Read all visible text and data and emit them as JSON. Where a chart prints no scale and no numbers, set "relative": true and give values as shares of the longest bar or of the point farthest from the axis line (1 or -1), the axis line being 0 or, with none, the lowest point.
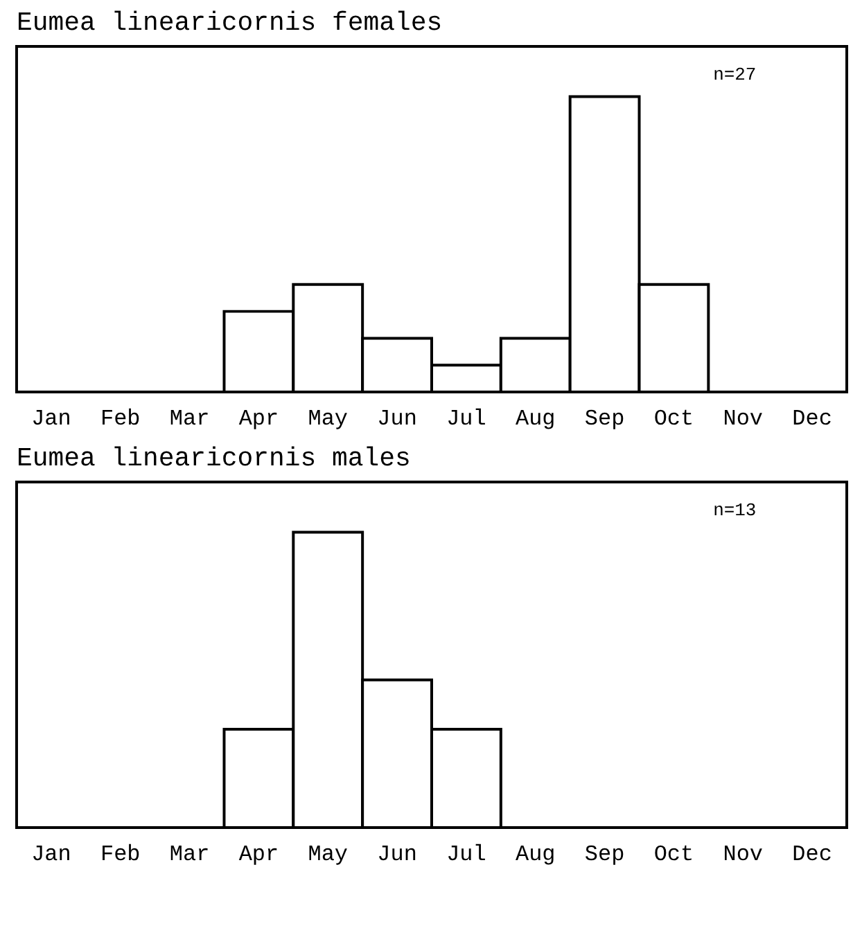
{
  "chart_data": [
    {
      "type": "bar",
      "title": "Eumea linearicornis females",
      "relative": true,
      "categories": [
        "Jan",
        "Feb",
        "Mar",
        "Apr",
        "May",
        "Jun",
        "Jul",
        "Aug",
        "Sep",
        "Oct",
        "Nov",
        "Dec"
      ],
      "values": [
        0,
        0,
        0,
        0.273,
        0.364,
        0.182,
        0.091,
        0.182,
        1,
        0.364,
        0,
        0
      ],
      "color": "#ffffff",
      "annotations": [
        "n=27"
      ]
    },
    {
      "type": "bar",
      "title": "Eumea linearicornis males",
      "relative": true,
      "categories": [
        "Jan",
        "Feb",
        "Mar",
        "Apr",
        "May",
        "Jun",
        "Jul",
        "Aug",
        "Sep",
        "Oct",
        "Nov",
        "Dec"
      ],
      "values": [
        0,
        0,
        0,
        0.333,
        1,
        0.5,
        0.333,
        0,
        0,
        0,
        0,
        0
      ],
      "color": "#ffffff",
      "annotations": [
        "n=13"
      ]
    }
  ]
}
